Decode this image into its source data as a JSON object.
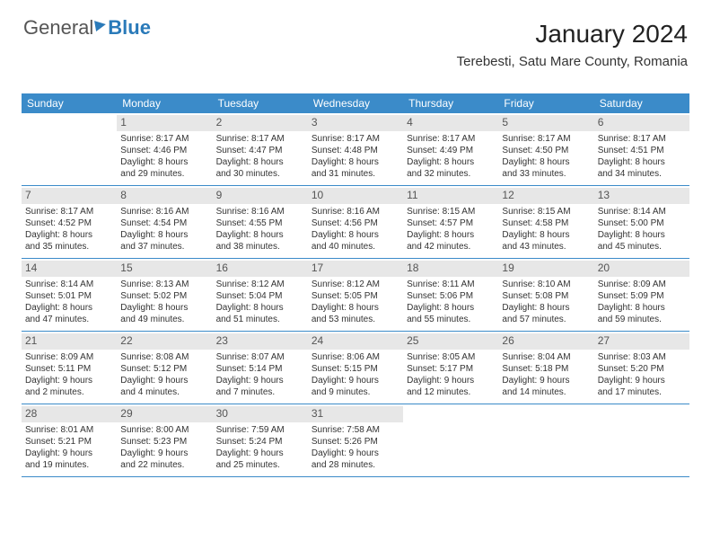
{
  "logo": {
    "part1": "General",
    "part2": "Blue"
  },
  "title": "January 2024",
  "subtitle": "Terebesti, Satu Mare County, Romania",
  "colors": {
    "header_bg": "#3b8bc9",
    "header_text": "#ffffff",
    "daynum_bg": "#e7e7e7",
    "border": "#3b8bc9",
    "logo_blue": "#2a7ab9"
  },
  "weekdays": [
    "Sunday",
    "Monday",
    "Tuesday",
    "Wednesday",
    "Thursday",
    "Friday",
    "Saturday"
  ],
  "weeks": [
    [
      {
        "n": "",
        "lines": []
      },
      {
        "n": "1",
        "lines": [
          "Sunrise: 8:17 AM",
          "Sunset: 4:46 PM",
          "Daylight: 8 hours",
          "and 29 minutes."
        ]
      },
      {
        "n": "2",
        "lines": [
          "Sunrise: 8:17 AM",
          "Sunset: 4:47 PM",
          "Daylight: 8 hours",
          "and 30 minutes."
        ]
      },
      {
        "n": "3",
        "lines": [
          "Sunrise: 8:17 AM",
          "Sunset: 4:48 PM",
          "Daylight: 8 hours",
          "and 31 minutes."
        ]
      },
      {
        "n": "4",
        "lines": [
          "Sunrise: 8:17 AM",
          "Sunset: 4:49 PM",
          "Daylight: 8 hours",
          "and 32 minutes."
        ]
      },
      {
        "n": "5",
        "lines": [
          "Sunrise: 8:17 AM",
          "Sunset: 4:50 PM",
          "Daylight: 8 hours",
          "and 33 minutes."
        ]
      },
      {
        "n": "6",
        "lines": [
          "Sunrise: 8:17 AM",
          "Sunset: 4:51 PM",
          "Daylight: 8 hours",
          "and 34 minutes."
        ]
      }
    ],
    [
      {
        "n": "7",
        "lines": [
          "Sunrise: 8:17 AM",
          "Sunset: 4:52 PM",
          "Daylight: 8 hours",
          "and 35 minutes."
        ]
      },
      {
        "n": "8",
        "lines": [
          "Sunrise: 8:16 AM",
          "Sunset: 4:54 PM",
          "Daylight: 8 hours",
          "and 37 minutes."
        ]
      },
      {
        "n": "9",
        "lines": [
          "Sunrise: 8:16 AM",
          "Sunset: 4:55 PM",
          "Daylight: 8 hours",
          "and 38 minutes."
        ]
      },
      {
        "n": "10",
        "lines": [
          "Sunrise: 8:16 AM",
          "Sunset: 4:56 PM",
          "Daylight: 8 hours",
          "and 40 minutes."
        ]
      },
      {
        "n": "11",
        "lines": [
          "Sunrise: 8:15 AM",
          "Sunset: 4:57 PM",
          "Daylight: 8 hours",
          "and 42 minutes."
        ]
      },
      {
        "n": "12",
        "lines": [
          "Sunrise: 8:15 AM",
          "Sunset: 4:58 PM",
          "Daylight: 8 hours",
          "and 43 minutes."
        ]
      },
      {
        "n": "13",
        "lines": [
          "Sunrise: 8:14 AM",
          "Sunset: 5:00 PM",
          "Daylight: 8 hours",
          "and 45 minutes."
        ]
      }
    ],
    [
      {
        "n": "14",
        "lines": [
          "Sunrise: 8:14 AM",
          "Sunset: 5:01 PM",
          "Daylight: 8 hours",
          "and 47 minutes."
        ]
      },
      {
        "n": "15",
        "lines": [
          "Sunrise: 8:13 AM",
          "Sunset: 5:02 PM",
          "Daylight: 8 hours",
          "and 49 minutes."
        ]
      },
      {
        "n": "16",
        "lines": [
          "Sunrise: 8:12 AM",
          "Sunset: 5:04 PM",
          "Daylight: 8 hours",
          "and 51 minutes."
        ]
      },
      {
        "n": "17",
        "lines": [
          "Sunrise: 8:12 AM",
          "Sunset: 5:05 PM",
          "Daylight: 8 hours",
          "and 53 minutes."
        ]
      },
      {
        "n": "18",
        "lines": [
          "Sunrise: 8:11 AM",
          "Sunset: 5:06 PM",
          "Daylight: 8 hours",
          "and 55 minutes."
        ]
      },
      {
        "n": "19",
        "lines": [
          "Sunrise: 8:10 AM",
          "Sunset: 5:08 PM",
          "Daylight: 8 hours",
          "and 57 minutes."
        ]
      },
      {
        "n": "20",
        "lines": [
          "Sunrise: 8:09 AM",
          "Sunset: 5:09 PM",
          "Daylight: 8 hours",
          "and 59 minutes."
        ]
      }
    ],
    [
      {
        "n": "21",
        "lines": [
          "Sunrise: 8:09 AM",
          "Sunset: 5:11 PM",
          "Daylight: 9 hours",
          "and 2 minutes."
        ]
      },
      {
        "n": "22",
        "lines": [
          "Sunrise: 8:08 AM",
          "Sunset: 5:12 PM",
          "Daylight: 9 hours",
          "and 4 minutes."
        ]
      },
      {
        "n": "23",
        "lines": [
          "Sunrise: 8:07 AM",
          "Sunset: 5:14 PM",
          "Daylight: 9 hours",
          "and 7 minutes."
        ]
      },
      {
        "n": "24",
        "lines": [
          "Sunrise: 8:06 AM",
          "Sunset: 5:15 PM",
          "Daylight: 9 hours",
          "and 9 minutes."
        ]
      },
      {
        "n": "25",
        "lines": [
          "Sunrise: 8:05 AM",
          "Sunset: 5:17 PM",
          "Daylight: 9 hours",
          "and 12 minutes."
        ]
      },
      {
        "n": "26",
        "lines": [
          "Sunrise: 8:04 AM",
          "Sunset: 5:18 PM",
          "Daylight: 9 hours",
          "and 14 minutes."
        ]
      },
      {
        "n": "27",
        "lines": [
          "Sunrise: 8:03 AM",
          "Sunset: 5:20 PM",
          "Daylight: 9 hours",
          "and 17 minutes."
        ]
      }
    ],
    [
      {
        "n": "28",
        "lines": [
          "Sunrise: 8:01 AM",
          "Sunset: 5:21 PM",
          "Daylight: 9 hours",
          "and 19 minutes."
        ]
      },
      {
        "n": "29",
        "lines": [
          "Sunrise: 8:00 AM",
          "Sunset: 5:23 PM",
          "Daylight: 9 hours",
          "and 22 minutes."
        ]
      },
      {
        "n": "30",
        "lines": [
          "Sunrise: 7:59 AM",
          "Sunset: 5:24 PM",
          "Daylight: 9 hours",
          "and 25 minutes."
        ]
      },
      {
        "n": "31",
        "lines": [
          "Sunrise: 7:58 AM",
          "Sunset: 5:26 PM",
          "Daylight: 9 hours",
          "and 28 minutes."
        ]
      },
      {
        "n": "",
        "lines": []
      },
      {
        "n": "",
        "lines": []
      },
      {
        "n": "",
        "lines": []
      }
    ]
  ]
}
